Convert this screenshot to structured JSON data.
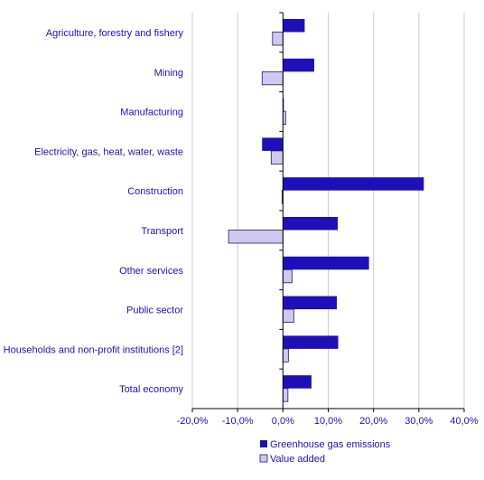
{
  "chart_data": {
    "type": "bar",
    "orientation": "horizontal",
    "categories": [
      "Agriculture, forestry and fishery",
      "Mining",
      "Manufacturing",
      "Electricity, gas, heat, water, waste",
      "Construction",
      "Transport",
      "Other services",
      "Public sector",
      "Households and non-profit institutions [2]",
      "Total economy"
    ],
    "series": [
      {
        "name": "Greenhouse gas emissions",
        "color": "#1f0fb8",
        "values": [
          4.8,
          6.9,
          0.2,
          -4.6,
          31.1,
          12.1,
          19.0,
          11.9,
          12.2,
          6.3
        ]
      },
      {
        "name": "Value added",
        "color": "#cfc8f0",
        "values": [
          -2.3,
          -4.6,
          0.6,
          -2.6,
          -0.2,
          -12.0,
          2.0,
          2.4,
          1.2,
          1.1
        ]
      }
    ],
    "xlim": [
      -20,
      40
    ],
    "xticks": [
      -20,
      -10,
      0,
      10,
      20,
      30,
      40
    ],
    "xtick_labels": [
      "-20,0%",
      "-10,0%",
      "0,0%",
      "10,0%",
      "20,0%",
      "30,0%",
      "40,0%"
    ],
    "grid": true,
    "legend_position": "bottom",
    "title": "",
    "xlabel": "",
    "ylabel": ""
  },
  "colors": {
    "text": "#1f0fb8",
    "gridline": "#c9c9dc",
    "bar_outline": "#1a1a6e"
  }
}
